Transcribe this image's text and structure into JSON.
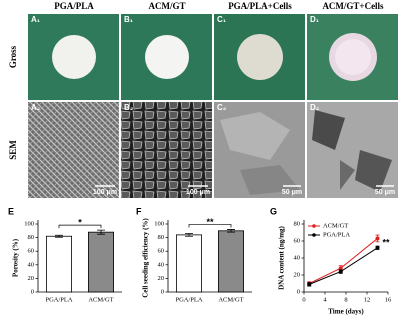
{
  "figure": {
    "columns": [
      "PGA/PLA",
      "ACM/GT",
      "PGA/PLA+Cells",
      "ACM/GT+Cells"
    ],
    "rows": [
      "Gross",
      "SEM"
    ],
    "panel_labels": [
      [
        "A₁",
        "B₁",
        "C₁",
        "D₁"
      ],
      [
        "A₂",
        "B₂",
        "C₂",
        "D₂"
      ]
    ],
    "scale_bars": [
      "100 μm",
      "100 μm",
      "50 μm",
      "50 μm"
    ]
  },
  "chart_data": [
    {
      "type": "bar",
      "panel": "E",
      "ylabel": "Porosity (%)",
      "categories": [
        "PGA/PLA",
        "ACM/GT"
      ],
      "values": [
        82,
        88
      ],
      "errors": [
        1.5,
        3
      ],
      "colors": [
        "#ffffff",
        "#8a8a8a"
      ],
      "ylim": [
        0,
        100
      ],
      "yticks": [
        0,
        20,
        40,
        60,
        80,
        100
      ],
      "significance": "*"
    },
    {
      "type": "bar",
      "panel": "F",
      "ylabel": "Cell seeding efficiency (%)",
      "categories": [
        "PGA/PLA",
        "ACM/GT"
      ],
      "values": [
        84,
        90
      ],
      "errors": [
        2,
        2
      ],
      "colors": [
        "#ffffff",
        "#8a8a8a"
      ],
      "ylim": [
        0,
        100
      ],
      "yticks": [
        0,
        20,
        40,
        60,
        80,
        100
      ],
      "significance": "**"
    },
    {
      "type": "line",
      "panel": "G",
      "xlabel": "Time (days)",
      "ylabel": "DNA content (ng/mg)",
      "x": [
        1,
        7,
        14
      ],
      "series": [
        {
          "name": "ACM/GT",
          "color": "#e02020",
          "values": [
            10,
            28,
            63
          ],
          "errors": [
            2,
            3,
            4
          ]
        },
        {
          "name": "PGA/PLA",
          "color": "#000000",
          "values": [
            9,
            24,
            52
          ],
          "errors": [
            2,
            2,
            2
          ]
        }
      ],
      "xlim": [
        0,
        16
      ],
      "xticks": [
        0,
        4,
        8,
        12,
        16
      ],
      "ylim": [
        0,
        80
      ],
      "yticks": [
        0,
        20,
        40,
        60,
        80
      ],
      "significance": "**"
    }
  ]
}
